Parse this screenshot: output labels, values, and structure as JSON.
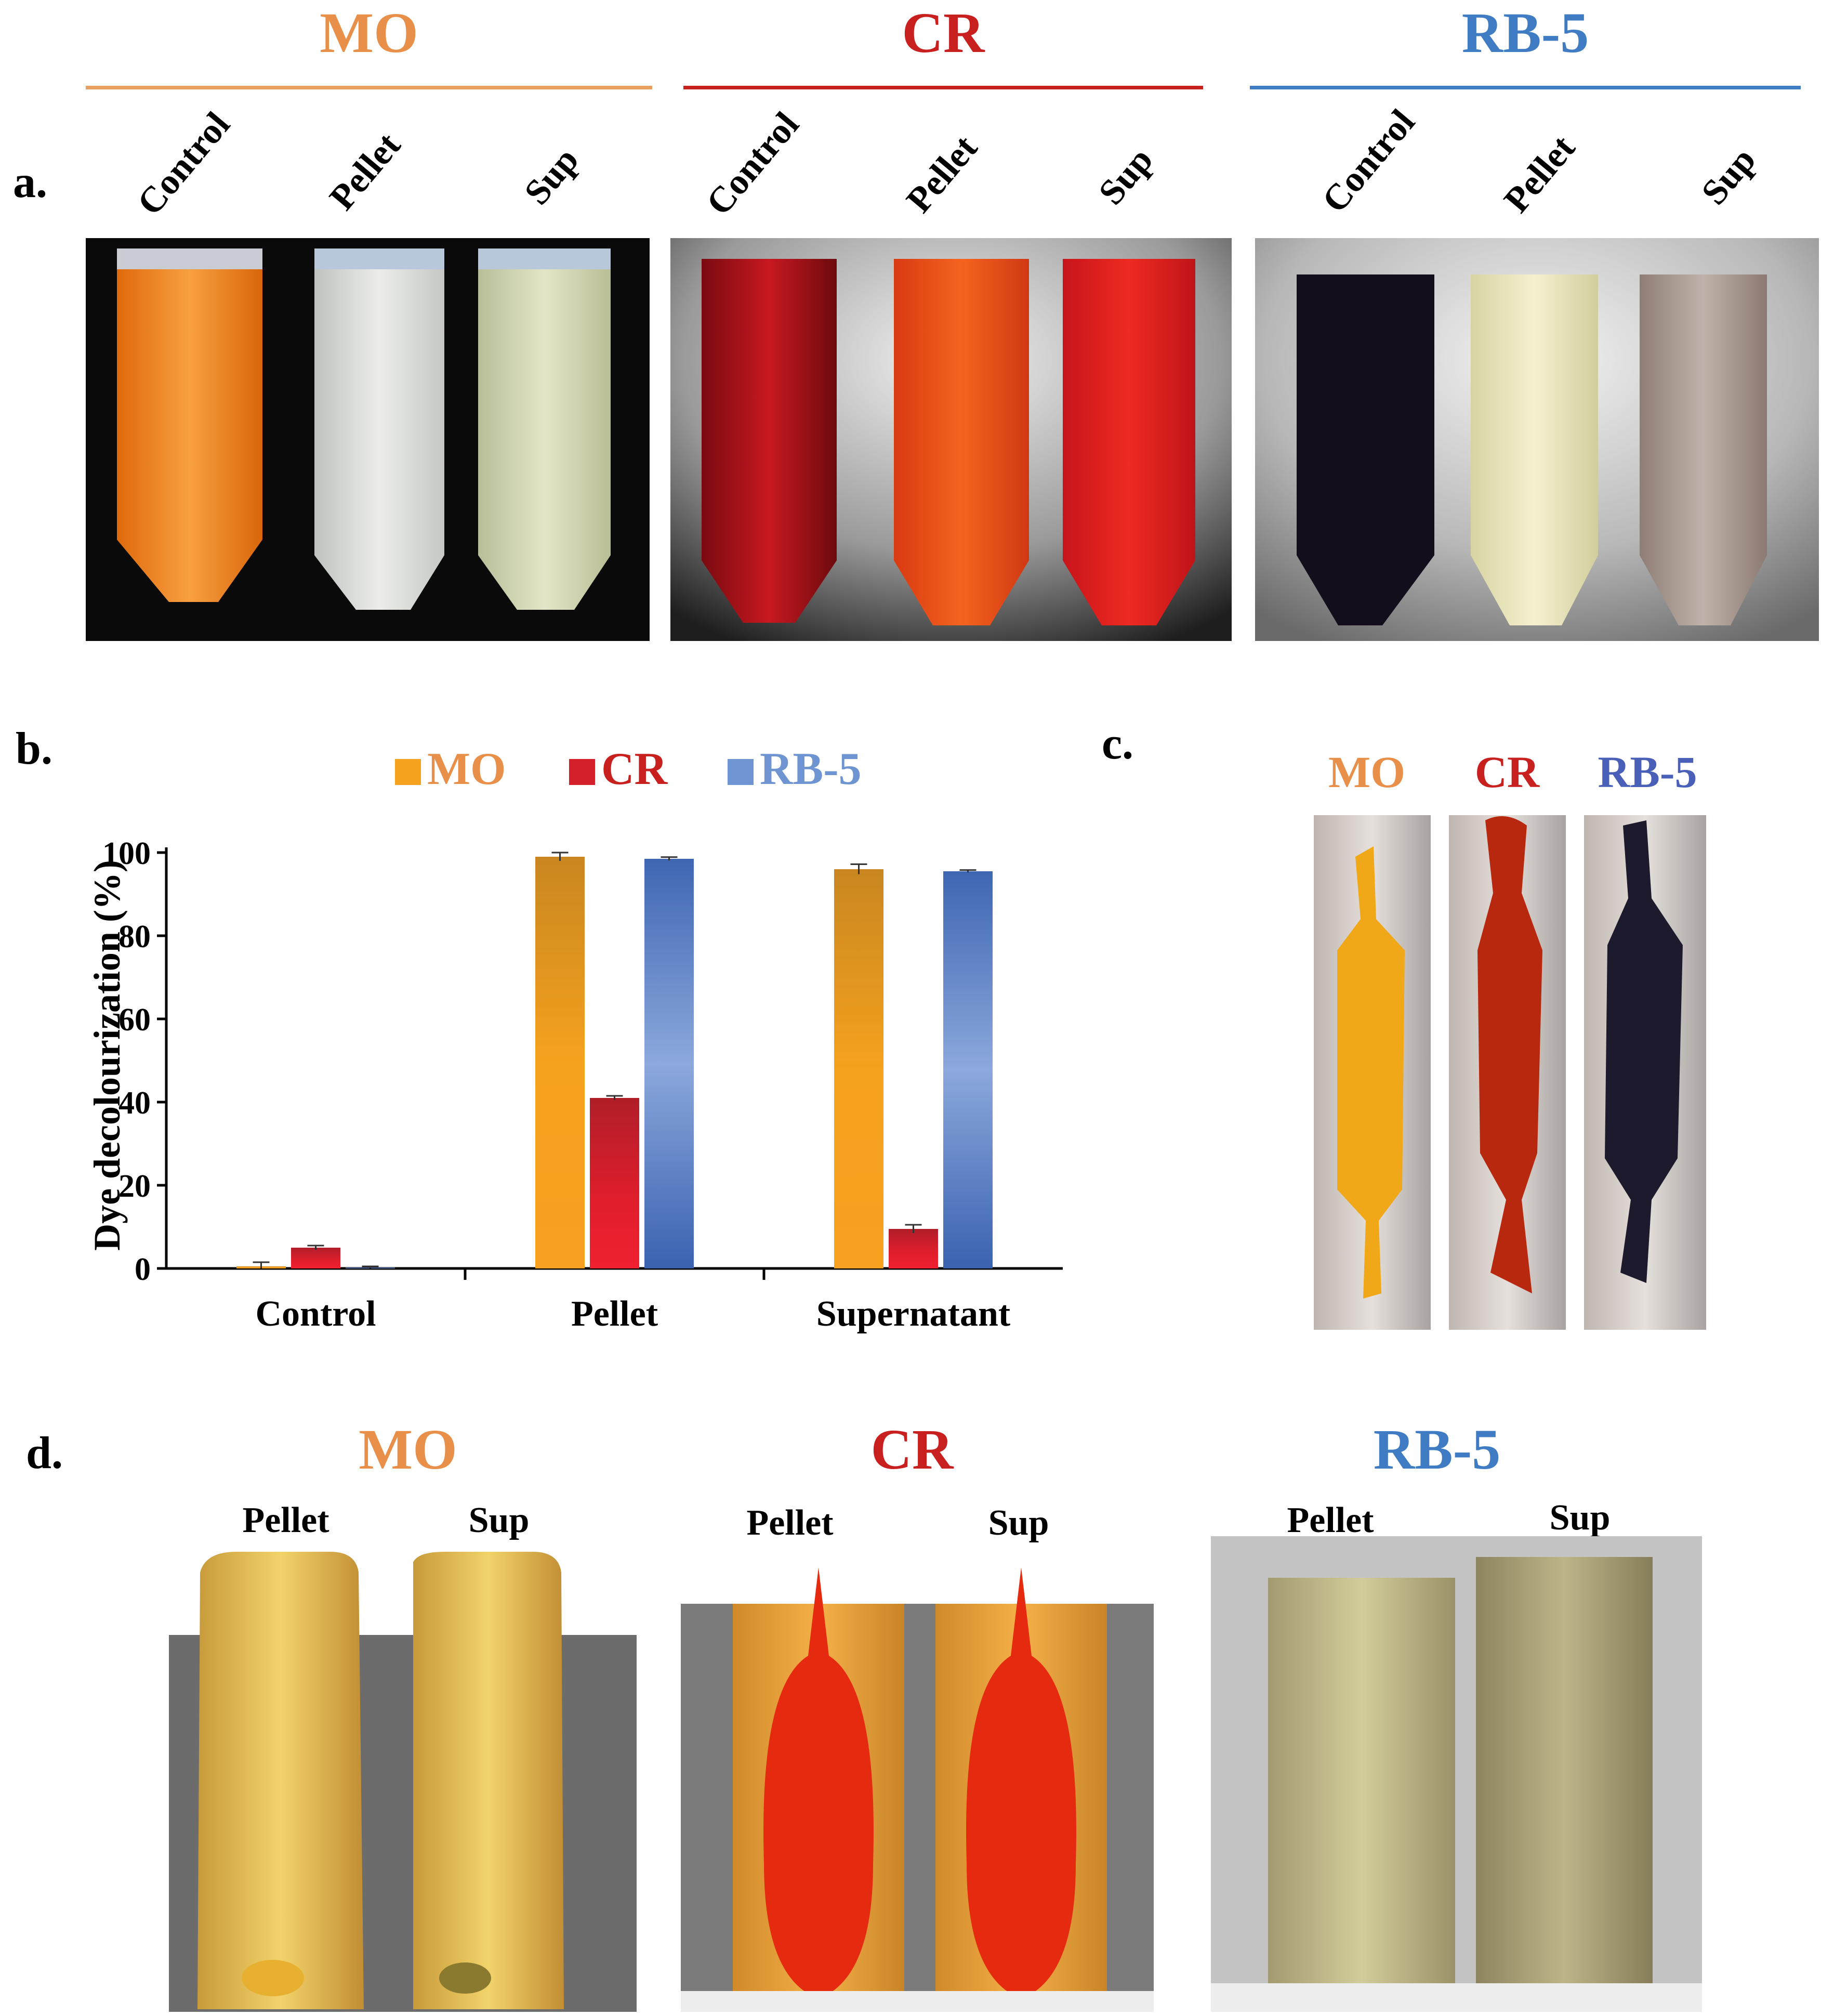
{
  "colors": {
    "mo": "#E8904A",
    "cr": "#C8201E",
    "rb5": "#3F7CC4"
  },
  "panel_a": {
    "letter": "a.",
    "groups": [
      {
        "dye": "MO",
        "tubes": [
          "Control",
          "Pellet",
          "Sup"
        ]
      },
      {
        "dye": "CR",
        "tubes": [
          "Control",
          "Pellet",
          "Sup"
        ]
      },
      {
        "dye": "RB-5",
        "tubes": [
          "Control",
          "Pellet",
          "Sup"
        ]
      }
    ]
  },
  "panel_b": {
    "letter": "b.",
    "chart_data": {
      "type": "bar",
      "title": "",
      "xlabel": "",
      "ylabel": "Dye decolourization (%)",
      "ylim": [
        0,
        100
      ],
      "yticks": [
        "0",
        "20",
        "40",
        "60",
        "80",
        "100"
      ],
      "categories": [
        "Control",
        "Pellet",
        "Supernatant"
      ],
      "legend_position": "top",
      "series": [
        {
          "name": "MO",
          "color": "#F39A1E",
          "values": [
            0.5,
            99,
            96
          ],
          "errors": [
            1.0,
            1.0,
            1.2
          ]
        },
        {
          "name": "CR",
          "color": "#D4202A",
          "values": [
            5,
            41,
            9.5
          ],
          "errors": [
            0.5,
            0.5,
            1.0
          ]
        },
        {
          "name": "RB-5",
          "color": "#4A72C0",
          "values": [
            0.2,
            98.5,
            95.5
          ],
          "errors": [
            0.3,
            0.4,
            0.3
          ]
        }
      ]
    }
  },
  "panel_c": {
    "letter": "c.",
    "dyes": [
      "MO",
      "CR",
      "RB-5"
    ]
  },
  "panel_d": {
    "letter": "d.",
    "groups": [
      {
        "dye": "MO",
        "tubes": [
          "Pellet",
          "Sup"
        ]
      },
      {
        "dye": "CR",
        "tubes": [
          "Pellet",
          "Sup"
        ]
      },
      {
        "dye": "RB-5",
        "tubes": [
          "Pellet",
          "Sup"
        ]
      }
    ]
  }
}
